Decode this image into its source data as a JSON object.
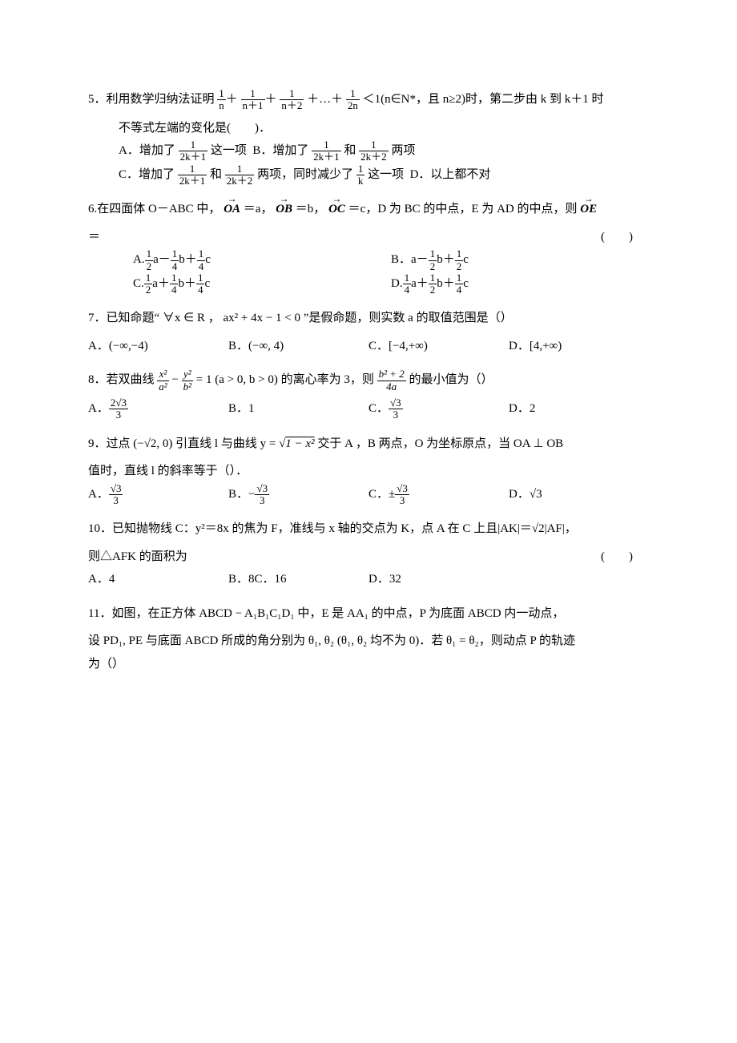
{
  "q5": {
    "stem_a": "5．利用数学归纳法证明",
    "stem_b": "＜1(n∈N*，且 n≥2)时，第二步由 k 到 k＋1 时",
    "stem_c": "不等式左端的变化是(　　)．",
    "terms": {
      "t1n": "1",
      "t1d": "n",
      "t2n": "1",
      "t2d": "n＋1",
      "t3n": "1",
      "t3d": "n＋2",
      "dots": "＋…＋",
      "t4n": "1",
      "t4d": "2n"
    },
    "optA_a": "A．增加了",
    "optA_b": "这一项",
    "optB_a": "B．增加了",
    "optB_b": "和",
    "optB_c": "两项",
    "optC_a": "C．增加了",
    "optC_b": "和",
    "optC_c": "两项，同时减少了",
    "optC_d": "这一项",
    "optD": "D．以上都不对",
    "fA": {
      "n": "1",
      "d": "2k＋1"
    },
    "fB1": {
      "n": "1",
      "d": "2k＋1"
    },
    "fB2": {
      "n": "1",
      "d": "2k＋2"
    },
    "fC1": {
      "n": "1",
      "d": "2k＋1"
    },
    "fC2": {
      "n": "1",
      "d": "2k＋2"
    },
    "fC3": {
      "n": "1",
      "d": "k"
    }
  },
  "q6": {
    "stem_a": "6.在四面体 O－ABC 中，",
    "stem_b": "＝a，",
    "stem_c": "＝b，",
    "stem_d": "＝c，D 为 BC 的中点，E 为 AD 的中点，则",
    "stem_e": "＝",
    "paren": "(　　)",
    "vOA": "OA",
    "vOB": "OB",
    "vOC": "OC",
    "vOE": "OE",
    "A": {
      "label": "A.",
      "c1n": "1",
      "c1d": "2",
      "s1": "a－",
      "c2n": "1",
      "c2d": "4",
      "s2": "b＋",
      "c3n": "1",
      "c3d": "4",
      "s3": "c"
    },
    "B": {
      "label": "B．",
      "s0": "a－",
      "c1n": "1",
      "c1d": "2",
      "s1": "b＋",
      "c2n": "1",
      "c2d": "2",
      "s2": "c"
    },
    "C": {
      "label": "C.",
      "c1n": "1",
      "c1d": "2",
      "s1": "a＋",
      "c2n": "1",
      "c2d": "4",
      "s2": "b＋",
      "c3n": "1",
      "c3d": "4",
      "s3": "c"
    },
    "D": {
      "label": "D.",
      "c1n": "1",
      "c1d": "4",
      "s1": "a＋",
      "c2n": "1",
      "c2d": "2",
      "s2": "b＋",
      "c3n": "1",
      "c3d": "4",
      "s3": "c"
    }
  },
  "q7": {
    "stem": "7．已知命题“ ∀x ∈ R ，  ax² + 4x − 1 < 0 ”是假命题，则实数 a 的取值范围是（）",
    "A": "A．(−∞,−4)",
    "B": "B．(−∞, 4)",
    "C": "C．[−4,+∞)",
    "D": "D．[4,+∞)"
  },
  "q8": {
    "stem_a": "8．若双曲线",
    "stem_b": "(a > 0, b > 0) 的离心率为 3，则",
    "stem_c": "的最小值为（）",
    "lhs": {
      "xn": "x²",
      "xd": "a²",
      "op": " − ",
      "yn": "y²",
      "yd": "b²",
      "eq": " = 1"
    },
    "rhs": {
      "n": "b² + 2",
      "d": "4a"
    },
    "A": {
      "label": "A．",
      "n": "2√3",
      "d": "3"
    },
    "B": "B．1",
    "C": {
      "label": "C．",
      "n": "√3",
      "d": "3"
    },
    "D": "D．2"
  },
  "q9": {
    "stem_a": "9．过点 (−√2, 0) 引直线 l 与曲线 y = ",
    "rad": "1 − x²",
    "stem_b": " 交于 A ，B 两点，O 为坐标原点，当 OA ⊥ OB",
    "stem_c": "值时，直线 l 的斜率等于（）．",
    "A": {
      "label": "A．",
      "n": "√3",
      "d": "3"
    },
    "B": {
      "label": "B．",
      "pre": "−",
      "n": "√3",
      "d": "3"
    },
    "C": {
      "label": "C．",
      "pre": "±",
      "n": "√3",
      "d": "3"
    },
    "D": "D．√3"
  },
  "q10": {
    "stem_a": "10．已知抛物线 C：y²＝8x 的焦为 F，准线与 x 轴的交点为 K，点 A 在 C 上且|AK|＝√2|AF|，",
    "stem_b": "则△AFK 的面积为",
    "paren": "(　　)",
    "A": "A．4",
    "B": "B．8",
    "C": "C．16",
    "D": "D．32"
  },
  "q11": {
    "stem_a": "11．如图，在正方体 ABCD − A₁B₁C₁D₁ 中，E 是 AA₁ 的中点，P 为底面 ABCD 内一动点，",
    "stem_b": "设 PD₁, PE 与底面 ABCD 所成的角分别为 θ₁, θ₂ (θ₁, θ₂ 均不为 0)．若 θ₁ = θ₂，则动点 P 的轨迹",
    "stem_c": "为（）"
  }
}
